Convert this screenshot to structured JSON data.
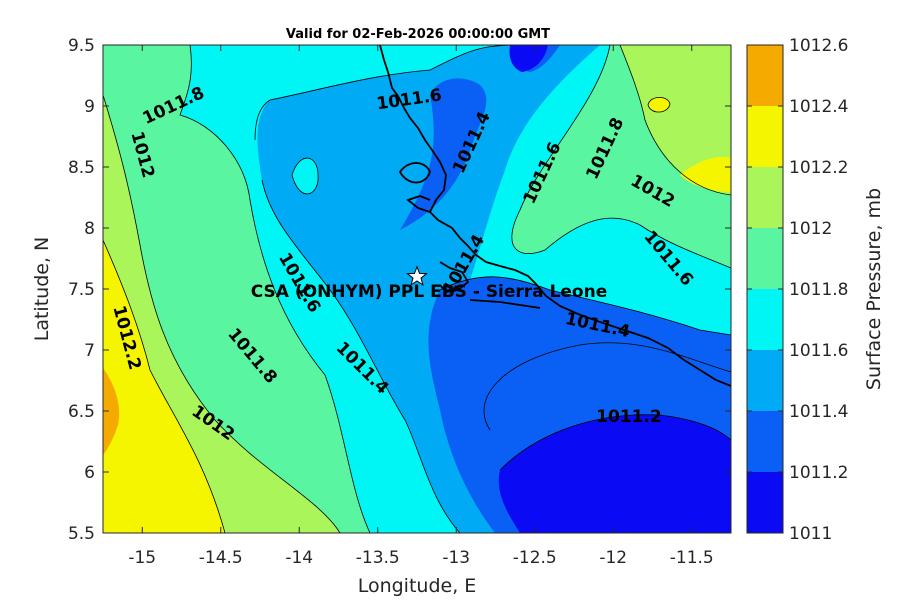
{
  "chart_data": {
    "type": "contour",
    "title": "Valid for 02-Feb-2026 00:00:00 GMT",
    "xlabel": "Longitude, E",
    "ylabel": "Latitude, N",
    "xlim": [
      -15.25,
      -11.25
    ],
    "ylim": [
      5.5,
      9.5
    ],
    "xticks": [
      -15,
      -14.5,
      -14,
      -13.5,
      -13,
      -12.5,
      -12,
      -11.5
    ],
    "xtick_labels": [
      "-15",
      "-14.5",
      "-14",
      "-13.5",
      "-13",
      "-12.5",
      "-12",
      "-11.5"
    ],
    "yticks": [
      5.5,
      6,
      6.5,
      7,
      7.5,
      8,
      8.5,
      9,
      9.5
    ],
    "ytick_labels": [
      "5.5",
      "6",
      "6.5",
      "7",
      "7.5",
      "8",
      "8.5",
      "9",
      "9.5"
    ],
    "colorbar": {
      "label": "Surface Pressure, mb",
      "levels": [
        1011,
        1011.2,
        1011.4,
        1011.6,
        1011.8,
        1012,
        1012.2,
        1012.4,
        1012.6
      ],
      "level_labels": [
        "1011",
        "1011.2",
        "1011.4",
        "1011.6",
        "1011.8",
        "1012",
        "1012.2",
        "1012.4",
        "1012.6"
      ],
      "colors": [
        "#0a0af5",
        "#0a60f5",
        "#00aaf5",
        "#00f5f5",
        "#5af5a0",
        "#aaf55a",
        "#f5f500",
        "#f5aa00",
        "#f55a00"
      ]
    },
    "contour_labels": [
      {
        "text": "1011.8",
        "lon": -14.8,
        "lat": 9.0
      },
      {
        "text": "1012",
        "lon": -15.0,
        "lat": 8.6
      },
      {
        "text": "1012.2",
        "lon": -15.1,
        "lat": 7.1
      },
      {
        "text": "1011.6",
        "lon": -13.3,
        "lat": 9.05
      },
      {
        "text": "1011.4",
        "lon": -12.9,
        "lat": 8.7
      },
      {
        "text": "1011.6",
        "lon": -12.45,
        "lat": 8.45
      },
      {
        "text": "1011.8",
        "lon": -12.05,
        "lat": 8.65
      },
      {
        "text": "1012",
        "lon": -11.75,
        "lat": 8.3
      },
      {
        "text": "1011.6",
        "lon": -11.65,
        "lat": 7.75
      },
      {
        "text": "1011.6",
        "lon": -14.0,
        "lat": 7.55
      },
      {
        "text": "1011.8",
        "lon": -14.3,
        "lat": 6.95
      },
      {
        "text": "1012",
        "lon": -14.55,
        "lat": 6.4
      },
      {
        "text": "1011.4",
        "lon": -13.6,
        "lat": 6.85
      },
      {
        "text": "1011.4",
        "lon": -12.1,
        "lat": 7.2
      },
      {
        "text": "1011.2",
        "lon": -11.9,
        "lat": 6.45
      },
      {
        "text": "1011.4",
        "lon": -12.95,
        "lat": 7.7
      }
    ],
    "station": {
      "name": "CSA (ONHYM) PPL EBS  - Sierra Leone",
      "lon": -13.25,
      "lat": 7.6
    }
  }
}
